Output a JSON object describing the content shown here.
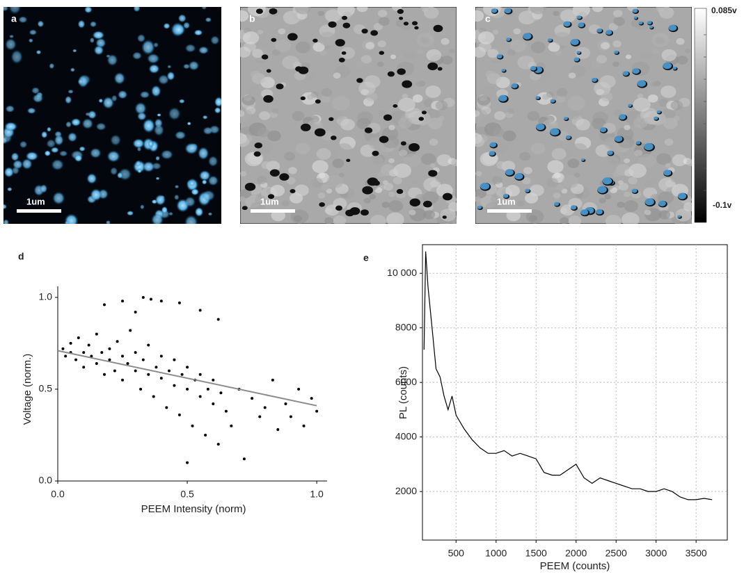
{
  "images": [
    {
      "label": "a",
      "scale_bar": "1um"
    },
    {
      "label": "b",
      "scale_bar": "1um"
    },
    {
      "label": "c",
      "scale_bar": "1um"
    }
  ],
  "colorbar": {
    "max_label": "0.085v",
    "min_label": "-0.1v"
  },
  "chart_data": [
    {
      "type": "scatter",
      "label": "d",
      "x_label": "PEEM Intensity (norm)",
      "y_label": "Voltage (norm.)",
      "x": [
        0.02,
        0.03,
        0.05,
        0.05,
        0.07,
        0.08,
        0.1,
        0.1,
        0.12,
        0.13,
        0.15,
        0.15,
        0.17,
        0.18,
        0.2,
        0.2,
        0.22,
        0.23,
        0.25,
        0.25,
        0.27,
        0.28,
        0.3,
        0.3,
        0.32,
        0.33,
        0.35,
        0.35,
        0.37,
        0.38,
        0.4,
        0.4,
        0.42,
        0.43,
        0.45,
        0.45,
        0.47,
        0.48,
        0.5,
        0.5,
        0.52,
        0.53,
        0.55,
        0.55,
        0.57,
        0.58,
        0.6,
        0.6,
        0.62,
        0.63,
        0.65,
        0.67,
        0.7,
        0.72,
        0.75,
        0.78,
        0.8,
        0.83,
        0.85,
        0.88,
        0.9,
        0.93,
        0.95,
        0.98,
        1.0,
        0.18,
        0.25,
        0.33,
        0.4,
        0.47,
        0.55,
        0.62,
        0.3,
        0.36,
        0.5
      ],
      "values": [
        0.72,
        0.68,
        0.75,
        0.7,
        0.66,
        0.78,
        0.7,
        0.62,
        0.74,
        0.68,
        0.64,
        0.8,
        0.7,
        0.58,
        0.72,
        0.66,
        0.6,
        0.76,
        0.55,
        0.68,
        0.64,
        0.82,
        0.6,
        0.7,
        0.5,
        0.66,
        0.58,
        0.74,
        0.46,
        0.62,
        0.56,
        0.68,
        0.4,
        0.6,
        0.52,
        0.66,
        0.36,
        0.58,
        0.5,
        0.62,
        0.3,
        0.55,
        0.46,
        0.58,
        0.25,
        0.5,
        0.42,
        0.55,
        0.2,
        0.48,
        0.38,
        0.3,
        0.5,
        0.12,
        0.45,
        0.35,
        0.4,
        0.55,
        0.28,
        0.42,
        0.35,
        0.5,
        0.3,
        0.45,
        0.38,
        0.96,
        0.98,
        1.0,
        0.98,
        0.97,
        0.93,
        0.88,
        0.92,
        0.99,
        0.1
      ],
      "color": "#000000",
      "fit": {
        "x": [
          0,
          1
        ],
        "values": [
          0.71,
          0.41
        ],
        "color": "#8c8c8c"
      },
      "xlim": [
        0,
        1.04
      ],
      "ylim": [
        0,
        1.06
      ],
      "xticks": [
        {
          "value": 0,
          "label": "0.0"
        },
        {
          "value": 0.5,
          "label": "0.5"
        },
        {
          "value": 1,
          "label": "1.0"
        }
      ],
      "yticks": [
        {
          "value": 0,
          "label": "0.0"
        },
        {
          "value": 0.5,
          "label": "0.5"
        },
        {
          "value": 1,
          "label": "1.0"
        }
      ],
      "grid": false
    },
    {
      "type": "line",
      "label": "e",
      "x_label": "PEEM (counts)",
      "y_label": "PL (counts)",
      "x": [
        100,
        120,
        150,
        200,
        250,
        300,
        350,
        400,
        450,
        500,
        600,
        700,
        800,
        900,
        1000,
        1100,
        1200,
        1300,
        1400,
        1500,
        1600,
        1700,
        1800,
        1900,
        2000,
        2100,
        2200,
        2300,
        2400,
        2500,
        2600,
        2700,
        2800,
        2900,
        3000,
        3100,
        3200,
        3300,
        3400,
        3500,
        3600,
        3700
      ],
      "values": [
        7200,
        10800,
        9500,
        8000,
        6500,
        6200,
        5500,
        5000,
        5500,
        4800,
        4300,
        3900,
        3600,
        3400,
        3400,
        3500,
        3300,
        3400,
        3300,
        3200,
        2700,
        2600,
        2600,
        2800,
        3000,
        2500,
        2300,
        2500,
        2400,
        2300,
        2200,
        2100,
        2100,
        2000,
        2000,
        2100,
        2000,
        1800,
        1700,
        1700,
        1750,
        1700
      ],
      "color": "#000000",
      "xlim": [
        80,
        3890
      ],
      "ylim": [
        220,
        11050
      ],
      "xticks": [
        500,
        1000,
        1500,
        2000,
        2500,
        3000,
        3500
      ],
      "yticks": [
        2000,
        4000,
        6000,
        8000,
        {
          "value": 10000,
          "label": "10 000"
        }
      ],
      "grid": true
    }
  ]
}
